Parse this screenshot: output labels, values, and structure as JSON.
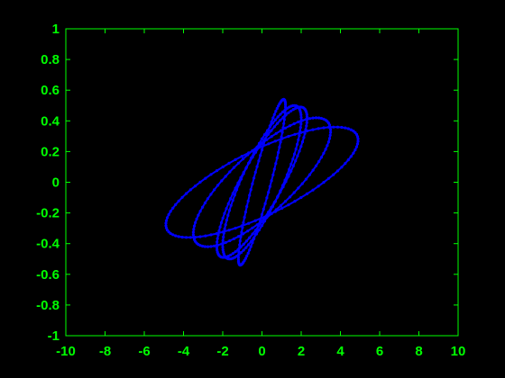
{
  "colors": {
    "background": "#000000",
    "axes": "#00ff00",
    "series": "#0000ff"
  },
  "chart_data": {
    "type": "line",
    "title": "",
    "xlabel": "",
    "ylabel": "",
    "xlim": [
      -10,
      10
    ],
    "ylim": [
      -1,
      1
    ],
    "grid": false,
    "x_ticks": [
      -10,
      -8,
      -6,
      -4,
      -2,
      0,
      2,
      4,
      6,
      8,
      10
    ],
    "y_ticks": [
      1,
      0.8,
      0.6,
      0.4,
      0.2,
      0,
      -0.2,
      -0.4,
      -0.6,
      -0.8,
      -1
    ],
    "series": [
      {
        "name": "",
        "loops": [
          {
            "amplitude_x": 1.2,
            "amplitude_y": 0.54,
            "phase": 0.4
          },
          {
            "amplitude_x": 2.3,
            "amplitude_y": 0.49,
            "phase": 0.55
          },
          {
            "amplitude_x": 3.5,
            "amplitude_y": 0.42,
            "phase": 0.65
          },
          {
            "amplitude_x": 4.9,
            "amplitude_y": 0.36,
            "phase": 0.7
          },
          {
            "amplitude_x": 2.0,
            "amplitude_y": 0.5,
            "phase": 0.6
          }
        ]
      }
    ]
  }
}
